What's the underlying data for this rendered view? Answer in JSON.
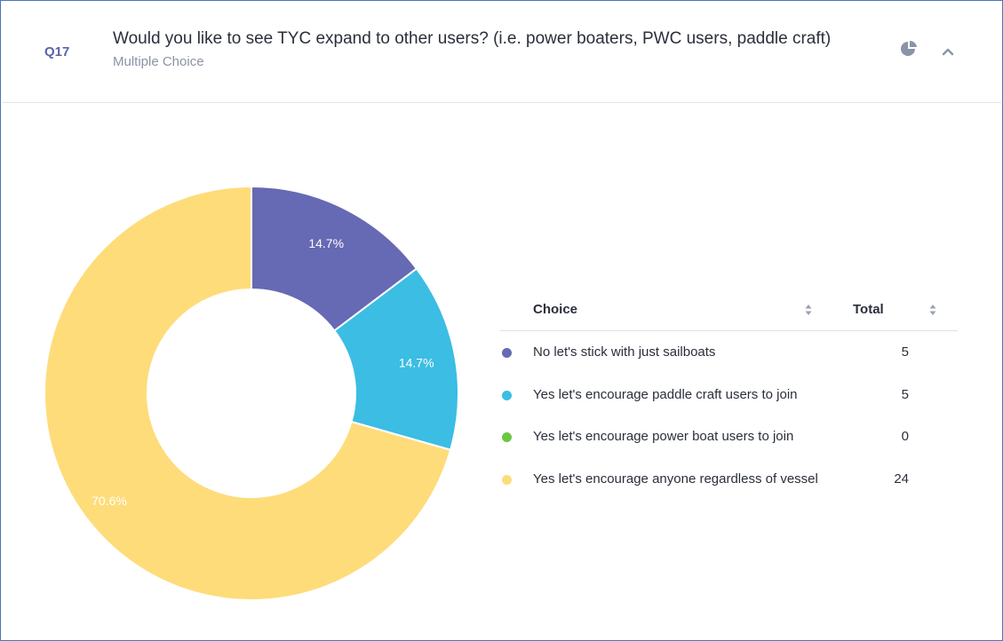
{
  "question": {
    "number": "Q17",
    "title": "Would you like to see TYC expand to other users? (i.e. power boaters, PWC users, paddle craft)",
    "type": "Multiple Choice"
  },
  "icons": {
    "chart_toggle": "pie-chart-icon",
    "collapse": "chevron-up-icon"
  },
  "legend": {
    "header_choice": "Choice",
    "header_total": "Total"
  },
  "chart_data": {
    "type": "pie",
    "variant": "donut",
    "title": "",
    "categories": [
      "No let's stick with just sailboats",
      "Yes let's encourage paddle craft users to join",
      "Yes let's encourage power boat users to join",
      "Yes let's encourage anyone regardless of vessel"
    ],
    "values": [
      5,
      5,
      0,
      24
    ],
    "percent_labels": [
      "14.7%",
      "14.7%",
      "",
      "70.6%"
    ],
    "colors": [
      "#6669b3",
      "#3bbde4",
      "#6cc644",
      "#fedc7a"
    ]
  }
}
